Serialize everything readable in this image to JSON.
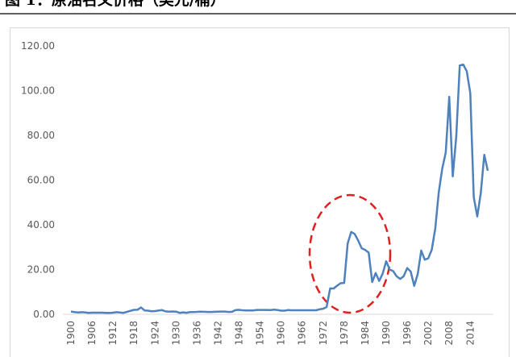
{
  "chart_data": {
    "type": "line",
    "title": "图 1：原油名义价格（美元/桶）",
    "categories": [
      "1900",
      null,
      null,
      null,
      null,
      null,
      "1906",
      null,
      null,
      null,
      null,
      null,
      "1912",
      null,
      null,
      null,
      null,
      null,
      "1918",
      null,
      null,
      null,
      null,
      null,
      "1924",
      null,
      null,
      null,
      null,
      null,
      "1930",
      null,
      null,
      null,
      null,
      null,
      "1936",
      null,
      null,
      null,
      null,
      null,
      "1942",
      null,
      null,
      null,
      null,
      null,
      "1948",
      null,
      null,
      null,
      null,
      null,
      "1954",
      null,
      null,
      null,
      null,
      null,
      "1960",
      null,
      null,
      null,
      null,
      null,
      "1966",
      null,
      null,
      null,
      null,
      null,
      "1972",
      null,
      null,
      null,
      null,
      null,
      "1978",
      null,
      null,
      null,
      null,
      null,
      "1984",
      null,
      null,
      null,
      null,
      null,
      "1990",
      null,
      null,
      null,
      null,
      null,
      "1996",
      null,
      null,
      null,
      null,
      null,
      "2002",
      null,
      null,
      null,
      null,
      null,
      "2008",
      null,
      null,
      null,
      null,
      null,
      "2014",
      null,
      null,
      null,
      null,
      null
    ],
    "values": [
      1.2,
      1.0,
      0.8,
      0.94,
      0.86,
      0.62,
      0.73,
      0.72,
      0.72,
      0.7,
      0.61,
      0.61,
      0.74,
      0.95,
      0.81,
      0.64,
      1.1,
      1.56,
      1.98,
      2.01,
      3.07,
      1.73,
      1.61,
      1.34,
      1.43,
      1.68,
      1.88,
      1.3,
      1.17,
      1.27,
      1.19,
      0.65,
      0.87,
      0.67,
      1.0,
      0.97,
      1.09,
      1.18,
      1.13,
      1.02,
      1.02,
      1.14,
      1.19,
      1.2,
      1.21,
      1.05,
      1.12,
      1.9,
      1.99,
      1.78,
      1.71,
      1.71,
      1.71,
      1.93,
      1.93,
      1.93,
      1.93,
      1.9,
      2.08,
      1.9,
      1.63,
      1.63,
      1.9,
      1.8,
      1.8,
      1.8,
      1.8,
      1.8,
      1.8,
      1.8,
      1.8,
      2.24,
      2.48,
      3.29,
      11.58,
      11.53,
      12.8,
      13.92,
      14.02,
      31.61,
      36.83,
      35.93,
      32.97,
      29.55,
      28.78,
      27.56,
      14.43,
      18.44,
      14.92,
      18.23,
      23.73,
      20.0,
      19.32,
      16.97,
      15.82,
      17.02,
      20.67,
      19.09,
      12.72,
      17.97,
      28.5,
      24.44,
      25.02,
      28.83,
      38.27,
      54.52,
      65.14,
      72.39,
      97.26,
      61.67,
      79.5,
      111.26,
      111.67,
      108.66,
      98.95,
      52.39,
      43.73,
      54.19,
      71.31,
      64.21
    ],
    "color": "#4f81bd",
    "ylim": [
      0,
      120
    ],
    "yticks": [
      {
        "value": 0,
        "label": "0.00"
      },
      {
        "value": 20,
        "label": "20.00"
      },
      {
        "value": 40,
        "label": "40.00"
      },
      {
        "value": 60,
        "label": "60.00"
      },
      {
        "value": 80,
        "label": "80.00"
      },
      {
        "value": 100,
        "label": "100.00"
      },
      {
        "value": 120,
        "label": "120.00"
      }
    ],
    "grid": false
  }
}
